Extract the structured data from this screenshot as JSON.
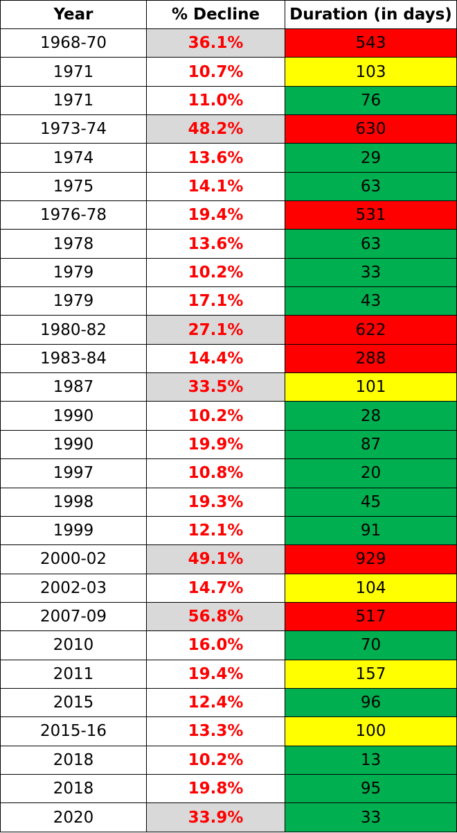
{
  "chart_data": {
    "type": "table",
    "columns": [
      "Year",
      "% Decline",
      "Duration (in days)"
    ],
    "rows": [
      {
        "year": "1968-70",
        "decline": "36.1%",
        "duration": "543",
        "duration_color": "#ff0000",
        "decline_highlight": true
      },
      {
        "year": "1971",
        "decline": "10.7%",
        "duration": "103",
        "duration_color": "#ffff00",
        "decline_highlight": false
      },
      {
        "year": "1971",
        "decline": "11.0%",
        "duration": "76",
        "duration_color": "#00b050",
        "decline_highlight": false
      },
      {
        "year": "1973-74",
        "decline": "48.2%",
        "duration": "630",
        "duration_color": "#ff0000",
        "decline_highlight": true
      },
      {
        "year": "1974",
        "decline": "13.6%",
        "duration": "29",
        "duration_color": "#00b050",
        "decline_highlight": false
      },
      {
        "year": "1975",
        "decline": "14.1%",
        "duration": "63",
        "duration_color": "#00b050",
        "decline_highlight": false
      },
      {
        "year": "1976-78",
        "decline": "19.4%",
        "duration": "531",
        "duration_color": "#ff0000",
        "decline_highlight": false
      },
      {
        "year": "1978",
        "decline": "13.6%",
        "duration": "63",
        "duration_color": "#00b050",
        "decline_highlight": false
      },
      {
        "year": "1979",
        "decline": "10.2%",
        "duration": "33",
        "duration_color": "#00b050",
        "decline_highlight": false
      },
      {
        "year": "1979",
        "decline": "17.1%",
        "duration": "43",
        "duration_color": "#00b050",
        "decline_highlight": false
      },
      {
        "year": "1980-82",
        "decline": "27.1%",
        "duration": "622",
        "duration_color": "#ff0000",
        "decline_highlight": true
      },
      {
        "year": "1983-84",
        "decline": "14.4%",
        "duration": "288",
        "duration_color": "#ff0000",
        "decline_highlight": false
      },
      {
        "year": "1987",
        "decline": "33.5%",
        "duration": "101",
        "duration_color": "#ffff00",
        "decline_highlight": true
      },
      {
        "year": "1990",
        "decline": "10.2%",
        "duration": "28",
        "duration_color": "#00b050",
        "decline_highlight": false
      },
      {
        "year": "1990",
        "decline": "19.9%",
        "duration": "87",
        "duration_color": "#00b050",
        "decline_highlight": false
      },
      {
        "year": "1997",
        "decline": "10.8%",
        "duration": "20",
        "duration_color": "#00b050",
        "decline_highlight": false
      },
      {
        "year": "1998",
        "decline": "19.3%",
        "duration": "45",
        "duration_color": "#00b050",
        "decline_highlight": false
      },
      {
        "year": "1999",
        "decline": "12.1%",
        "duration": "91",
        "duration_color": "#00b050",
        "decline_highlight": false
      },
      {
        "year": "2000-02",
        "decline": "49.1%",
        "duration": "929",
        "duration_color": "#ff0000",
        "decline_highlight": true
      },
      {
        "year": "2002-03",
        "decline": "14.7%",
        "duration": "104",
        "duration_color": "#ffff00",
        "decline_highlight": false
      },
      {
        "year": "2007-09",
        "decline": "56.8%",
        "duration": "517",
        "duration_color": "#ff0000",
        "decline_highlight": true
      },
      {
        "year": "2010",
        "decline": "16.0%",
        "duration": "70",
        "duration_color": "#00b050",
        "decline_highlight": false
      },
      {
        "year": "2011",
        "decline": "19.4%",
        "duration": "157",
        "duration_color": "#ffff00",
        "decline_highlight": false
      },
      {
        "year": "2015",
        "decline": "12.4%",
        "duration": "96",
        "duration_color": "#00b050",
        "decline_highlight": false
      },
      {
        "year": "2015-16",
        "decline": "13.3%",
        "duration": "100",
        "duration_color": "#ffff00",
        "decline_highlight": false
      },
      {
        "year": "2018",
        "decline": "10.2%",
        "duration": "13",
        "duration_color": "#00b050",
        "decline_highlight": false
      },
      {
        "year": "2018",
        "decline": "19.8%",
        "duration": "95",
        "duration_color": "#00b050",
        "decline_highlight": false
      },
      {
        "year": "2020",
        "decline": "33.9%",
        "duration": "33",
        "duration_color": "#00b050",
        "decline_highlight": true
      }
    ],
    "colors": {
      "decline_text": "#ff0000",
      "decline_highlight": "#d9d9d9",
      "duration_red": "#ff0000",
      "duration_yellow": "#ffff00",
      "duration_green": "#00b050"
    }
  }
}
